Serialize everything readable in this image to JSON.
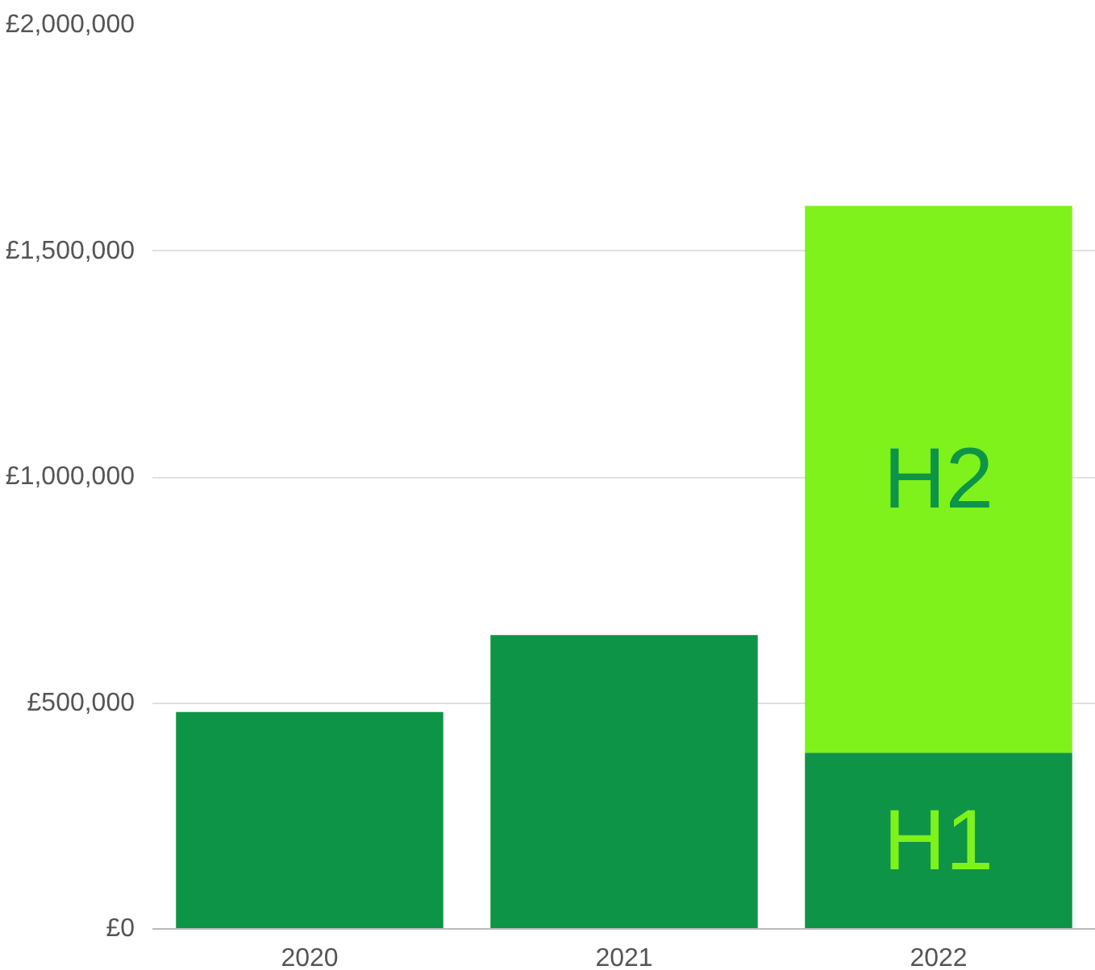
{
  "chart_data": {
    "type": "bar",
    "stacked": true,
    "categories": [
      "2020",
      "2021",
      "2022"
    ],
    "series": [
      {
        "color": "#0e9447",
        "values": [
          480000,
          650000,
          null
        ]
      },
      {
        "name": "H1",
        "color": "#0e9447",
        "values": [
          null,
          null,
          390000
        ]
      },
      {
        "name": "H2",
        "color": "#7ef21a",
        "values": [
          null,
          null,
          1210000
        ]
      }
    ],
    "ylim": [
      0,
      2000000
    ],
    "yticks": [
      {
        "value": 0,
        "label": "£0"
      },
      {
        "value": 500000,
        "label": "£500,000"
      },
      {
        "value": 1000000,
        "label": "£1,000,000"
      },
      {
        "value": 1500000,
        "label": "£1,500,000"
      },
      {
        "value": 2000000,
        "label": "£2,000,000"
      }
    ],
    "grid": "y"
  }
}
